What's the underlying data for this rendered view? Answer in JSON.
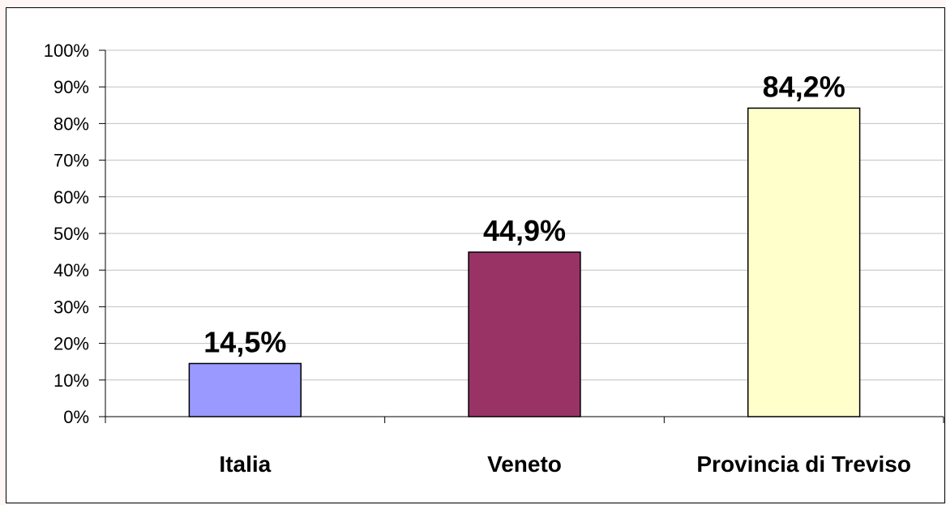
{
  "chart_data": {
    "type": "bar",
    "categories": [
      "Italia",
      "Veneto",
      "Provincia di Treviso"
    ],
    "values": [
      14.5,
      44.9,
      84.2
    ],
    "data_labels": [
      "14,5%",
      "44,9%",
      "84,2%"
    ],
    "bar_colors": [
      "#9999ff",
      "#993366",
      "#ffffcc"
    ],
    "ylim": [
      0,
      100
    ],
    "yticks": [
      0,
      10,
      20,
      30,
      40,
      50,
      60,
      70,
      80,
      90,
      100
    ],
    "ytick_labels": [
      "0%",
      "10%",
      "20%",
      "30%",
      "40%",
      "50%",
      "60%",
      "70%",
      "80%",
      "90%",
      "100%"
    ],
    "grid": true,
    "grid_color": "#c0c0c0",
    "title": "",
    "xlabel": "",
    "ylabel": ""
  }
}
